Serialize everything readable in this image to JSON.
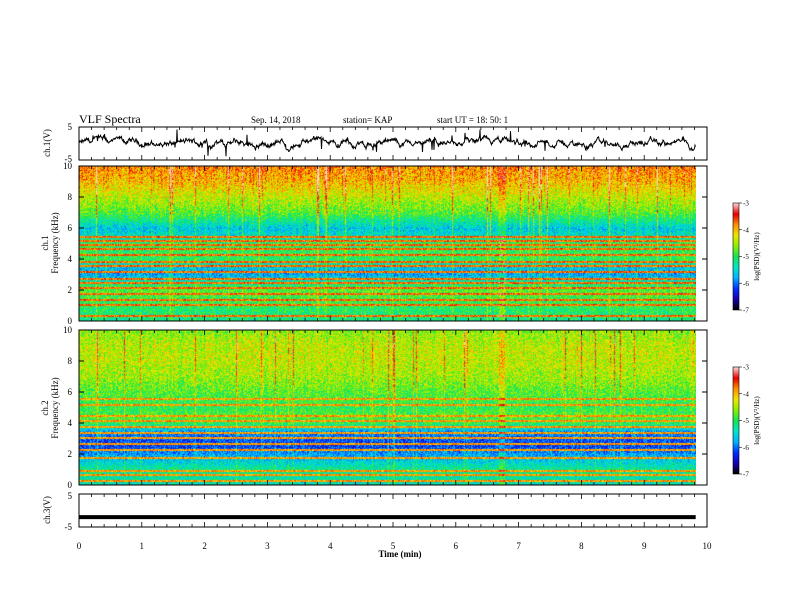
{
  "header": {
    "title": "VLF Spectra",
    "date": "Sep. 14, 2018",
    "station": "station= KAP",
    "start": "start  UT =   18: 50: 1"
  },
  "colors": {
    "colormap": [
      "#000000",
      "#1a00b8",
      "#0033ff",
      "#00b4ff",
      "#00e6c8",
      "#14e650",
      "#8cf000",
      "#f0e600",
      "#ff8c00",
      "#e60000",
      "#ffd2d2"
    ]
  },
  "chart_data": [
    {
      "type": "line",
      "name": "ch1-voltage",
      "ylabel": "ch.1(V)",
      "ylim": [
        -5,
        5
      ],
      "yticks": [
        "5",
        "-5"
      ],
      "xlim": [
        0,
        10
      ],
      "x_extent": [
        0,
        9.82
      ],
      "trace_mean": 0,
      "trace_spread": 1.2
    },
    {
      "type": "heatmap",
      "name": "ch1-spectrogram",
      "ylabel_lines": [
        "ch.1",
        "Frequency  (kHz)"
      ],
      "ylim": [
        0,
        10
      ],
      "yticks": [
        "0",
        "2",
        "4",
        "6",
        "8",
        "10"
      ],
      "xlim": [
        0,
        10
      ],
      "x_extent": [
        0,
        9.82
      ],
      "colorbar": {
        "label": "log(PSD)(V²/Hz)",
        "range": [
          -7,
          -3
        ],
        "ticks": [
          "-3",
          "-4",
          "-5",
          "-6",
          "-7"
        ]
      },
      "profile_freq_khz": [
        0,
        1,
        2,
        2.5,
        3,
        3.5,
        4,
        5,
        5.5,
        6,
        7,
        8,
        9,
        10
      ],
      "profile_level": [
        0.45,
        0.5,
        0.55,
        0.45,
        0.3,
        0.35,
        0.5,
        0.5,
        0.4,
        0.35,
        0.55,
        0.65,
        0.75,
        0.8
      ],
      "line_freqs_khz": [
        0.4,
        1.1,
        1.4,
        1.8,
        2.2,
        2.5,
        2.8,
        3.2,
        3.6,
        3.9,
        4.3,
        4.7,
        5.0,
        5.2,
        5.5
      ],
      "burst_level": 0.82
    },
    {
      "type": "heatmap",
      "name": "ch2-spectrogram",
      "ylabel_lines": [
        "ch.2",
        "Frequency  (kHz)"
      ],
      "ylim": [
        0,
        10
      ],
      "yticks": [
        "0",
        "2",
        "4",
        "6",
        "8",
        "10"
      ],
      "xlim": [
        0,
        10
      ],
      "x_extent": [
        0,
        9.82
      ],
      "colorbar": {
        "label": "log(PSD)(V²/Hz)",
        "range": [
          -7,
          -3
        ],
        "ticks": [
          "-3",
          "-4",
          "-5",
          "-6",
          "-7"
        ]
      },
      "profile_freq_khz": [
        0,
        1,
        2,
        2.5,
        3,
        3.5,
        4,
        4.5,
        5,
        6,
        7,
        8,
        9,
        10
      ],
      "profile_level": [
        0.4,
        0.45,
        0.3,
        0.2,
        0.22,
        0.3,
        0.5,
        0.55,
        0.5,
        0.55,
        0.62,
        0.65,
        0.65,
        0.6
      ],
      "line_freqs_khz": [
        0.3,
        0.7,
        1.0,
        1.8,
        2.3,
        2.7,
        3.1,
        3.4,
        3.8,
        4.2,
        4.5,
        5.2,
        5.6
      ],
      "burst_level": 0.78
    },
    {
      "type": "line",
      "name": "ch3-voltage",
      "ylabel": "ch.3(V)",
      "ylim": [
        -5,
        5
      ],
      "yticks": [
        "5",
        "-5"
      ],
      "xlim": [
        0,
        10
      ],
      "x_extent": [
        0,
        9.82
      ],
      "trace_mean": -2,
      "trace_spread": 0
    }
  ],
  "xaxis": {
    "label": "Time  (min)",
    "ticks": [
      "0",
      "1",
      "2",
      "3",
      "4",
      "5",
      "6",
      "7",
      "8",
      "9",
      "10"
    ],
    "range": [
      0,
      10
    ]
  }
}
